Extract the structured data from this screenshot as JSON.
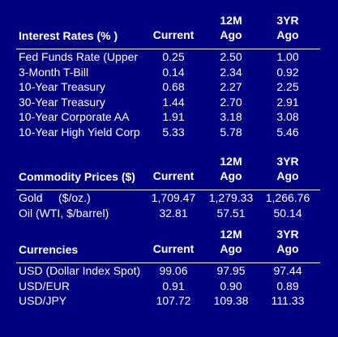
{
  "interest_rates": {
    "title": "Interest Rates (% )",
    "col_current": "Current",
    "col_12m_line1": "12M",
    "col_12m_line2": "Ago",
    "col_3yr_line1": "3YR",
    "col_3yr_line2": "Ago",
    "rows": [
      {
        "label": "Fed Funds Rate (Upper",
        "current": "0.25",
        "m12": "2.50",
        "yr3": "1.00"
      },
      {
        "label": "3-Month T-Bill",
        "current": "0.14",
        "m12": "2.34",
        "yr3": "0.92"
      },
      {
        "label": "10-Year Treasury",
        "current": "0.68",
        "m12": "2.27",
        "yr3": "2.25"
      },
      {
        "label": "30-Year Treasury",
        "current": "1.44",
        "m12": "2.70",
        "yr3": "2.91"
      },
      {
        "label": "10-Year Corporate AA",
        "current": "1.91",
        "m12": "3.18",
        "yr3": "3.08"
      },
      {
        "label": "10-Year High Yield Corp",
        "current": "5.33",
        "m12": "5.78",
        "yr3": "5.46"
      }
    ]
  },
  "commodity_prices": {
    "title": "Commodity Prices ($)",
    "col_current": "Current",
    "col_12m_line1": "12M",
    "col_12m_line2": "Ago",
    "col_3yr_line1": "3YR",
    "col_3yr_line2": "Ago",
    "rows": [
      {
        "label": "Gold     ($/oz.)",
        "current": "1,709.47",
        "m12": "1,279.33",
        "yr3": "1,266.76"
      },
      {
        "label": "Oil (WTI, $/barrel)",
        "current": "32.81",
        "m12": "57.51",
        "yr3": "50.14"
      }
    ]
  },
  "currencies": {
    "title": "Currencies",
    "col_current": "Current",
    "col_12m_line1": "12M",
    "col_12m_line2": "Ago",
    "col_3yr_line1": "3YR",
    "col_3yr_line2": "Ago",
    "rows": [
      {
        "label": "USD (Dollar Index Spot)",
        "current": "99.06",
        "m12": "97.95",
        "yr3": "97.44"
      },
      {
        "label": "USD/EUR",
        "current": "0.91",
        "m12": "0.90",
        "yr3": "0.89"
      },
      {
        "label": "USD/JPY",
        "current": "107.72",
        "m12": "109.38",
        "yr3": "111.33"
      }
    ]
  }
}
